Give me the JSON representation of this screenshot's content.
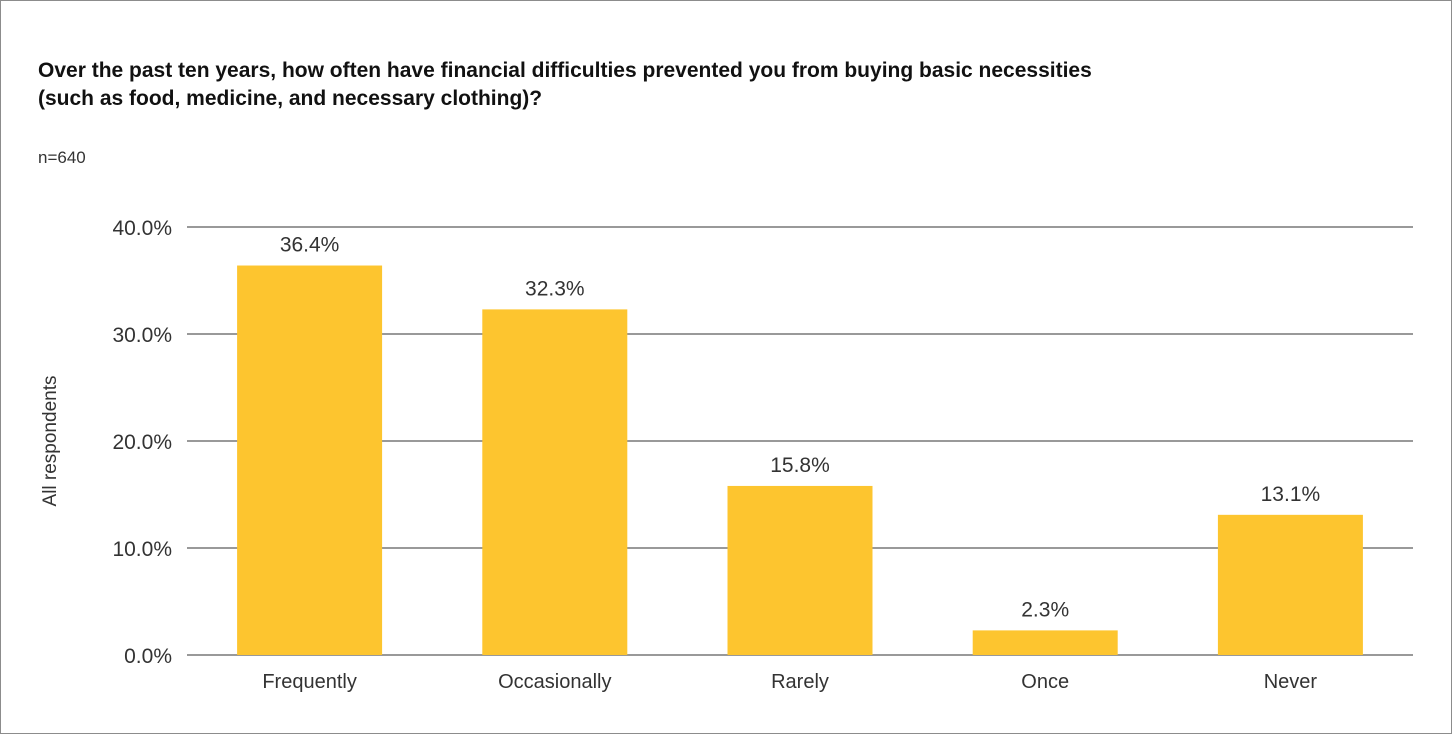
{
  "chart_data": {
    "type": "bar",
    "title": "Over the past ten years, how often have financial difficulties prevented you from buying basic necessities (such as food, medicine, and necessary clothing)?",
    "subtitle": "n=640",
    "xlabel": "",
    "ylabel": "All respondents",
    "categories": [
      "Frequently",
      "Occasionally",
      "Rarely",
      "Once",
      "Never"
    ],
    "values": [
      36.4,
      32.3,
      15.8,
      2.3,
      13.1
    ],
    "value_labels": [
      "36.4%",
      "32.3%",
      "15.8%",
      "2.3%",
      "13.1%"
    ],
    "ylim": [
      0,
      40
    ],
    "yticks": [
      0,
      10,
      20,
      30,
      40
    ],
    "ytick_labels": [
      "0.0%",
      "10.0%",
      "20.0%",
      "30.0%",
      "40.0%"
    ],
    "grid": true,
    "legend": "none",
    "bar_color": "#FDC52F",
    "grid_color": "#333333"
  }
}
